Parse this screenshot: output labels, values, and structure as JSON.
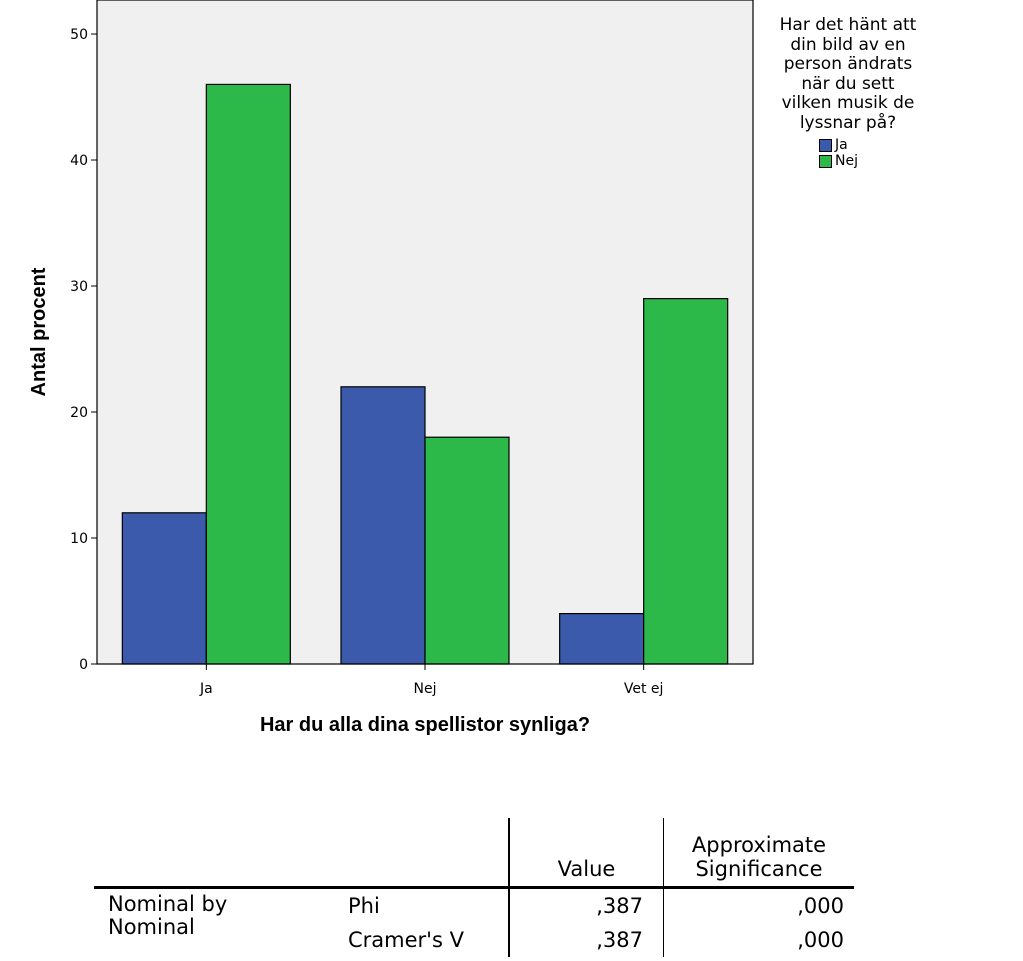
{
  "chart_data": {
    "type": "bar",
    "categories": [
      "Ja",
      "Nej",
      "Vet ej"
    ],
    "series": [
      {
        "name": "Ja",
        "values": [
          12,
          22,
          4
        ],
        "color": "#3c5aab"
      },
      {
        "name": "Nej",
        "values": [
          46,
          18,
          29
        ],
        "color": "#2db84a"
      }
    ],
    "xlabel": "Har du alla dina spellistor synliga?",
    "ylabel": "Antal procent",
    "ylim": [
      0,
      50
    ],
    "yticks": [
      0,
      10,
      20,
      30,
      40,
      50
    ],
    "plot_background": "#f0f0f0",
    "legend": {
      "title": "Har det hänt att\ndin bild av en\nperson ändrats\nnär du sett\nvilken musik de\nlyssnar på?",
      "placement": "right"
    }
  },
  "stats_table": {
    "headers": {
      "value": "Value",
      "significance": "Approximate\nSignificance"
    },
    "group_label": "Nominal by\nNominal",
    "rows": [
      {
        "label": "Phi",
        "value": ",387",
        "significance": ",000"
      },
      {
        "label": "Cramer's V",
        "value": ",387",
        "significance": ",000"
      }
    ]
  }
}
